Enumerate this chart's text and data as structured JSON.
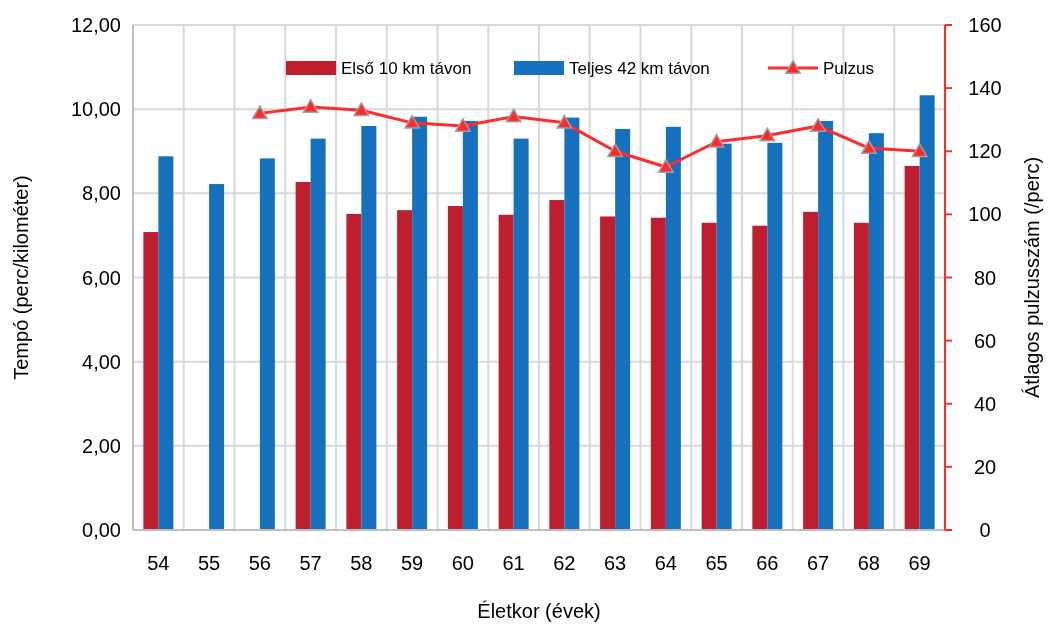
{
  "chart_data": {
    "type": "bar",
    "xlabel": "Életkor (évek)",
    "ylabel": "Tempó (perc/kilométer)",
    "y2label": "Átlagos pulzusszám (/perc)",
    "categories": [
      "54",
      "55",
      "56",
      "57",
      "58",
      "59",
      "60",
      "61",
      "62",
      "63",
      "64",
      "65",
      "66",
      "67",
      "68",
      "69"
    ],
    "series": [
      {
        "name": "Első 10 km távon",
        "color": "#be1e2d",
        "values": [
          7.08,
          null,
          null,
          8.27,
          7.51,
          7.6,
          7.7,
          7.49,
          7.84,
          7.45,
          7.42,
          7.3,
          7.23,
          7.56,
          7.3,
          8.65
        ]
      },
      {
        "name": "Teljes 42 km távon",
        "color": "#1570be",
        "values": [
          8.88,
          8.22,
          8.83,
          9.3,
          9.6,
          9.82,
          9.72,
          9.3,
          9.8,
          9.53,
          9.58,
          9.18,
          9.2,
          9.72,
          9.43,
          10.33
        ]
      },
      {
        "name": "Pulzus",
        "type": "line",
        "axis": "y2",
        "color": "#ff2a2a",
        "marker": "triangle",
        "values": [
          null,
          null,
          132,
          134,
          133,
          129,
          128,
          131,
          129,
          120,
          115,
          123,
          125,
          128,
          121,
          120
        ]
      }
    ],
    "ylim": [
      0,
      12
    ],
    "yticks": [
      {
        "value": 0,
        "label": "0,00"
      },
      {
        "value": 2,
        "label": "2,00"
      },
      {
        "value": 4,
        "label": "4,00"
      },
      {
        "value": 6,
        "label": "6,00"
      },
      {
        "value": 8,
        "label": "8,00"
      },
      {
        "value": 10,
        "label": "10,00"
      },
      {
        "value": 12,
        "label": "12,00"
      }
    ],
    "y2lim": [
      0,
      160
    ],
    "y2ticks": [
      0,
      20,
      40,
      60,
      80,
      100,
      120,
      140,
      160
    ],
    "grid": true,
    "legend": "top right"
  }
}
